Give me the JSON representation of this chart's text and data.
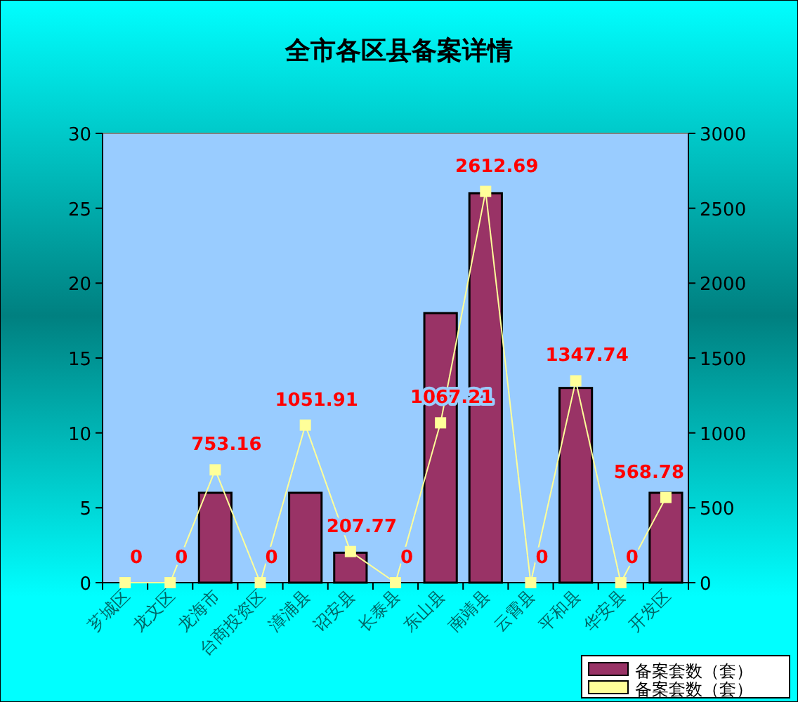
{
  "chart_data": {
    "type": "bar",
    "title": "全市各区县备案详情",
    "categories": [
      "芗城区",
      "龙文区",
      "龙海市",
      "台商投资区",
      "漳浦县",
      "诏安县",
      "长泰县",
      "东山县",
      "南靖县",
      "云霄县",
      "平和县",
      "华安县",
      "开发区"
    ],
    "series": [
      {
        "name": "备案套数（套）",
        "type": "bar",
        "color": "#993366",
        "values": [
          0,
          0,
          6,
          0,
          6,
          2,
          0,
          18,
          26,
          0,
          13,
          0,
          6
        ]
      },
      {
        "name": "备案套数（套）",
        "type": "line",
        "axis": "y2",
        "color": "#ffff99",
        "marker": "square",
        "data_labels": true,
        "values": [
          0,
          0,
          753.16,
          0,
          1051.91,
          207.77,
          0,
          1067.21,
          2612.69,
          0,
          1347.74,
          0,
          568.78
        ]
      }
    ],
    "ylim": [
      0,
      30
    ],
    "yticks": [
      0,
      5,
      10,
      15,
      20,
      25,
      30
    ],
    "y2lim": [
      0,
      3000
    ],
    "y2ticks": [
      0,
      500,
      1000,
      1500,
      2000,
      2500,
      3000
    ],
    "grid": false,
    "legend": "bottom right"
  }
}
